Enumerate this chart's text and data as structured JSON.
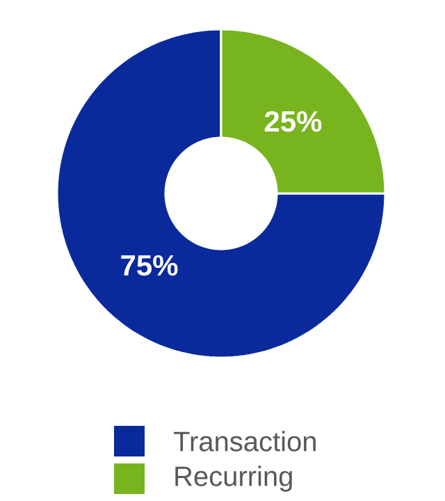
{
  "chart_data": {
    "type": "donut",
    "categories": [
      "Transaction",
      "Recurring"
    ],
    "values": [
      75,
      25
    ],
    "colors": [
      "#0a2a9b",
      "#78b41e"
    ],
    "value_labels": [
      "75%",
      "25%"
    ],
    "legend": "bottom"
  }
}
